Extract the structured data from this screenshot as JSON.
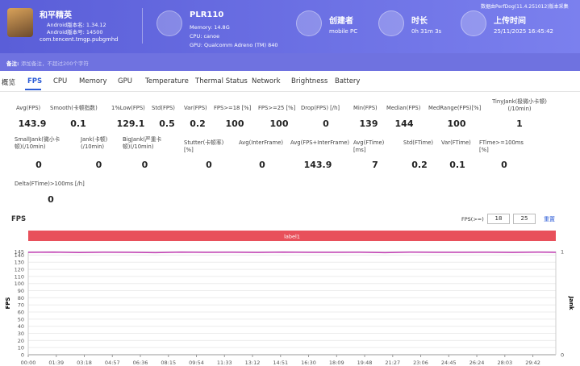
{
  "header": {
    "app": {
      "name": "和平精英",
      "version_name": "Android版本名: 1.34.12",
      "version_code": "Android版本号: 14500",
      "package": "com.tencent.tmgp.pubgmhd"
    },
    "device": {
      "name": "PLR110",
      "memory": "Memory: 14.8G",
      "cpu": "CPU: canoe",
      "gpu": "GPU: Qualcomm Adreno (TM) 840"
    },
    "creator": {
      "label": "创建者",
      "value": "mobile PC"
    },
    "duration": {
      "label": "时长",
      "value": "0h 31m 3s"
    },
    "upload": {
      "label": "上传时间",
      "value": "25/11/2025 16:45:42"
    },
    "source": "数据由PerfDog(11.4.251012)版本采集"
  },
  "note": {
    "label": "备注:",
    "placeholder": "添加备注，不超过200个字符"
  },
  "tabs": [
    "概览",
    "FPS",
    "CPU",
    "Memory",
    "GPU",
    "Temperature",
    "Thermal Status",
    "Network",
    "Brightness",
    "Battery"
  ],
  "metrics": [
    [
      {
        "label": "Avg(FPS)",
        "value": 143.9
      },
      {
        "label": "Smooth(卡顿指数)",
        "value": 0.1
      },
      {
        "label": "1%Low(FPS)",
        "value": 129.1
      },
      {
        "label": "Std(FPS)",
        "value": 0.5
      },
      {
        "label": "Var(FPS)",
        "value": 0.2
      },
      {
        "label": "FPS>=18 [%]",
        "value": 100
      },
      {
        "label": "FPS>=25 [%]",
        "value": 100
      },
      {
        "label": "Drop(FPS) [/h]",
        "value": 0
      },
      {
        "label": "Min(FPS)",
        "value": 139
      },
      {
        "label": "Median(FPS)",
        "value": 144
      },
      {
        "label": "MedRange(FPS)[%]",
        "value": 100
      },
      {
        "label": "TinyJank(极微小卡顿)(/10min)",
        "value": 1
      }
    ],
    [
      {
        "label": "SmallJank(微小卡顿)(/10min)",
        "value": 0
      },
      {
        "label": "Jank(卡顿)(/10min)",
        "value": 0
      },
      {
        "label": "BigJank(严重卡顿)(/10min)",
        "value": 0
      },
      {
        "label": "Stutter(卡顿率) [%]",
        "value": 0
      },
      {
        "label": "Avg(InterFrame)",
        "value": 0
      },
      {
        "label": "Avg(FPS+InterFrame)",
        "value": 143.9
      },
      {
        "label": "Avg(FTime) [ms]",
        "value": 7
      },
      {
        "label": "Std(FTime)",
        "value": 0.2
      },
      {
        "label": "Var(FTime)",
        "value": 0.1
      },
      {
        "label": "FTime>=100ms [%]",
        "value": 0
      }
    ],
    [
      {
        "label": "Delta(FTime)>100ms [/h]",
        "value": 0
      }
    ]
  ],
  "chart_data": {
    "type": "line",
    "title": "FPS",
    "threshold_label": "FPS(>=)",
    "thresholds": [
      18,
      25
    ],
    "reset": "重置",
    "band_label": "label1",
    "y_label": "FPS",
    "y2_label": "Jank",
    "grid": true,
    "x": [
      0,
      90,
      180,
      270,
      360,
      450,
      540,
      630,
      720,
      810,
      900,
      990,
      1080,
      1170,
      1260,
      1350,
      1440,
      1530,
      1620,
      1710,
      1800,
      1863
    ],
    "series": [
      {
        "name": "FPS",
        "color": "#c23fb4",
        "values": [
          143.9,
          144.2,
          143.6,
          144,
          143.8,
          143.4,
          144.1,
          143.9,
          144,
          143.7,
          144.2,
          143.8,
          143.9,
          144,
          143.5,
          144.1,
          143.9,
          143.8,
          144,
          143.7,
          144.1,
          143.9
        ]
      }
    ],
    "xlim": [
      0,
      1863
    ],
    "xticks": [
      {
        "value": 0,
        "label": "00:00"
      },
      {
        "value": 99,
        "label": "01:39"
      },
      {
        "value": 198,
        "label": "03:18"
      },
      {
        "value": 297,
        "label": "04:57"
      },
      {
        "value": 396,
        "label": "06:36"
      },
      {
        "value": 495,
        "label": "08:15"
      },
      {
        "value": 594,
        "label": "09:54"
      },
      {
        "value": 693,
        "label": "11:33"
      },
      {
        "value": 792,
        "label": "13:12"
      },
      {
        "value": 891,
        "label": "14:51"
      },
      {
        "value": 990,
        "label": "16:30"
      },
      {
        "value": 1089,
        "label": "18:09"
      },
      {
        "value": 1188,
        "label": "19:48"
      },
      {
        "value": 1287,
        "label": "21:27"
      },
      {
        "value": 1386,
        "label": "23:06"
      },
      {
        "value": 1485,
        "label": "24:45"
      },
      {
        "value": 1584,
        "label": "26:24"
      },
      {
        "value": 1683,
        "label": "28:03"
      },
      {
        "value": 1782,
        "label": "29:42"
      }
    ],
    "ylim": [
      0,
      145
    ],
    "yticks": [
      0,
      10,
      20,
      30,
      40,
      50,
      60,
      70,
      80,
      90,
      100,
      110,
      120,
      130,
      140,
      145
    ],
    "y2lim": [
      0,
      1
    ],
    "y2ticks": [
      0,
      1
    ]
  }
}
